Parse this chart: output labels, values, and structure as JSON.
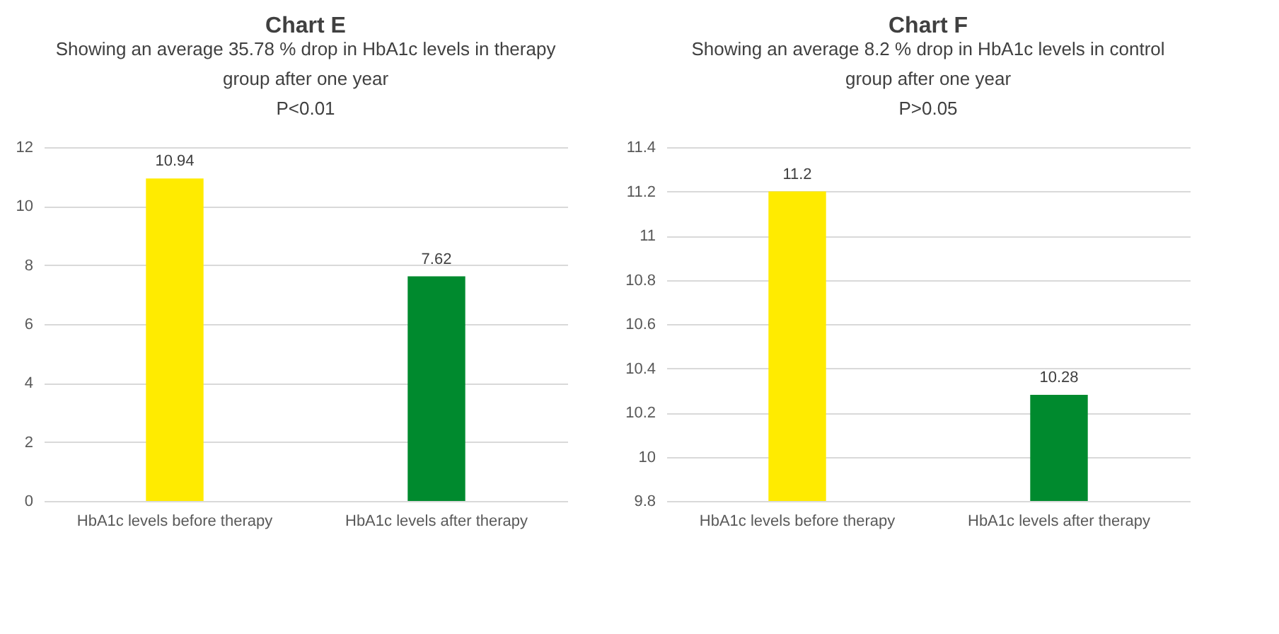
{
  "chart_data": [
    {
      "type": "bar",
      "title": "Chart E",
      "subtitle": "Showing an average 35.78 % drop in HbA1c levels in therapy group after one year",
      "annotations": [
        "P<0.01"
      ],
      "categories": [
        "HbA1c levels before therapy",
        "HbA1c levels after therapy"
      ],
      "values": [
        10.94,
        7.62
      ],
      "colors": [
        "#ffeb00",
        "#008a2e"
      ],
      "ylim": [
        0,
        12
      ],
      "yticks": [
        0,
        2,
        4,
        6,
        8,
        10,
        12
      ],
      "grid": "y",
      "data_labels": true
    },
    {
      "type": "bar",
      "title": "Chart F",
      "subtitle": "Showing an average 8.2 % drop in HbA1c levels in control group after one year",
      "annotations": [
        "P>0.05"
      ],
      "categories": [
        "HbA1c levels before therapy",
        "HbA1c levels after therapy"
      ],
      "values": [
        11.2,
        10.28
      ],
      "colors": [
        "#ffeb00",
        "#008a2e"
      ],
      "ylim": [
        9.8,
        11.4
      ],
      "yticks": [
        9.8,
        10,
        10.2,
        10.4,
        10.6,
        10.8,
        11,
        11.2,
        11.4
      ],
      "grid": "y",
      "data_labels": true
    }
  ]
}
